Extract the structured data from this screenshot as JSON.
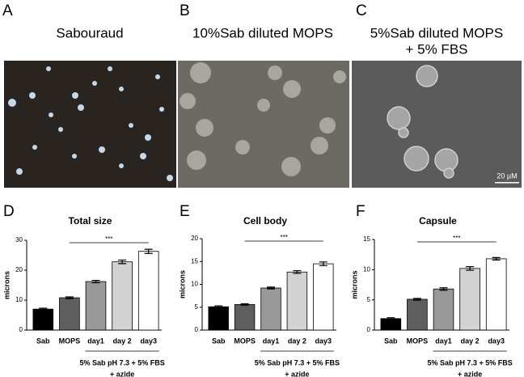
{
  "panels": [
    {
      "letter": "A",
      "title_lines": [
        "Sabouraud"
      ]
    },
    {
      "letter": "B",
      "title_lines": [
        "10%Sab diluted MOPS"
      ]
    },
    {
      "letter": "C",
      "title_lines": [
        "5%Sab diluted MOPS",
        "+ 5% FBS"
      ]
    }
  ],
  "scale_bar": "20 µM",
  "chart_data": [
    {
      "type": "bar",
      "panel": "D",
      "title": "Total size",
      "ylabel": "microns",
      "categories": [
        "Sab",
        "MOPS",
        "day1",
        "day 2",
        "day3"
      ],
      "values": [
        7,
        10.8,
        16.2,
        22.8,
        26.3
      ],
      "errors": [
        0.3,
        0.3,
        0.4,
        0.6,
        0.7
      ],
      "colors": [
        "#000000",
        "#5e5e5e",
        "#999999",
        "#d3d3d3",
        "#ffffff"
      ],
      "ylim": [
        0,
        30
      ],
      "yticks": [
        0,
        10,
        20,
        30
      ],
      "significance": "***",
      "group_label_lines": [
        "5% Sab pH 7.3 + 5% FBS",
        "+ azide"
      ]
    },
    {
      "type": "bar",
      "panel": "E",
      "title": "Cell body",
      "ylabel": "microns",
      "categories": [
        "Sab",
        "MOPS",
        "day1",
        "day 2",
        "day3"
      ],
      "values": [
        5.1,
        5.6,
        9.2,
        12.7,
        14.5
      ],
      "errors": [
        0.2,
        0.15,
        0.2,
        0.3,
        0.4
      ],
      "colors": [
        "#000000",
        "#5e5e5e",
        "#999999",
        "#d3d3d3",
        "#ffffff"
      ],
      "ylim": [
        0,
        20
      ],
      "yticks": [
        0,
        5,
        10,
        15,
        20
      ],
      "significance": "***",
      "group_label_lines": [
        "5% Sab pH 7.3 + 5% FBS",
        "+ azide"
      ]
    },
    {
      "type": "bar",
      "panel": "F",
      "title": "Capsule",
      "ylabel": "microns",
      "categories": [
        "Sab",
        "MOPS",
        "day1",
        "day 2",
        "day3"
      ],
      "values": [
        1.9,
        5.1,
        6.8,
        10.2,
        11.8
      ],
      "errors": [
        0.15,
        0.15,
        0.2,
        0.3,
        0.2
      ],
      "colors": [
        "#000000",
        "#5e5e5e",
        "#999999",
        "#d3d3d3",
        "#ffffff"
      ],
      "ylim": [
        0,
        15
      ],
      "yticks": [
        0,
        5,
        10,
        15
      ],
      "significance": "***",
      "group_label_lines": [
        "5% Sab pH 7.3 + 5% FBS",
        "+ azide"
      ]
    }
  ]
}
